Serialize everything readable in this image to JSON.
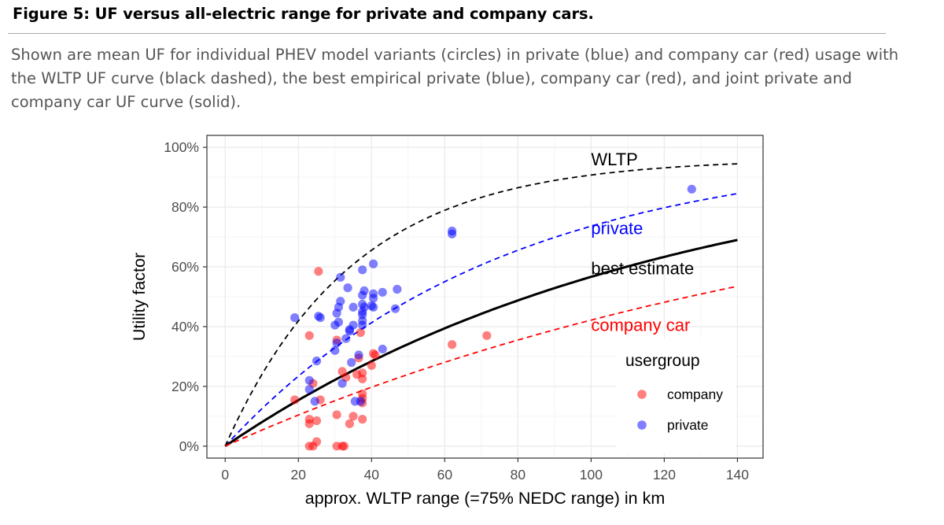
{
  "figure": {
    "title": "Figure 5: UF versus all-electric range for private and company cars.",
    "caption": "Shown are mean UF for individual PHEV model variants (circles) in private (blue) and company car (red) usage with the WLTP UF curve (black dashed), the best empirical private (blue), company car (red), and joint private and company car UF curve (solid)."
  },
  "chart_data": {
    "type": "scatter",
    "xlabel": "approx. WLTP range (=75% NEDC range) in km",
    "ylabel": "Utility factor",
    "xlim": [
      -5,
      147
    ],
    "ylim": [
      -4,
      104
    ],
    "x_ticks": [
      0,
      20,
      40,
      60,
      80,
      100,
      120,
      140
    ],
    "x_tick_labels": [
      "0",
      "20",
      "40",
      "60",
      "80",
      "100",
      "120",
      "140"
    ],
    "y_ticks": [
      0,
      20,
      40,
      60,
      80,
      100
    ],
    "y_tick_labels": [
      "0%",
      "20%",
      "40%",
      "60%",
      "80%",
      "100%"
    ],
    "grid": true,
    "legend": {
      "title": "usergroup",
      "placement": "bottom-right",
      "entries": [
        {
          "label": "company",
          "color": "#ff0000"
        },
        {
          "label": "private",
          "color": "#0000ff"
        }
      ]
    },
    "curves": [
      {
        "label": "WLTP",
        "color": "#000000",
        "style": "dashed",
        "scale_km": 35,
        "points": [
          [
            0,
            0
          ],
          [
            5,
            13
          ],
          [
            10,
            25
          ],
          [
            20,
            43
          ],
          [
            30,
            58
          ],
          [
            40,
            68
          ],
          [
            50,
            75
          ],
          [
            60,
            80
          ],
          [
            70,
            84
          ],
          [
            80,
            87
          ],
          [
            90,
            89
          ],
          [
            100,
            91
          ],
          [
            110,
            92
          ],
          [
            120,
            93
          ],
          [
            130,
            94
          ],
          [
            140,
            94.5
          ]
        ]
      },
      {
        "label": "private",
        "color": "#0000ff",
        "style": "dashed",
        "scale_km": 75,
        "points": [
          [
            0,
            0
          ],
          [
            10,
            10
          ],
          [
            20,
            19
          ],
          [
            30,
            31
          ],
          [
            40,
            42
          ],
          [
            50,
            52
          ],
          [
            60,
            60
          ],
          [
            70,
            66
          ],
          [
            80,
            71
          ],
          [
            90,
            75
          ],
          [
            100,
            78
          ],
          [
            110,
            80
          ],
          [
            120,
            82
          ],
          [
            130,
            83.5
          ],
          [
            140,
            84.5
          ]
        ]
      },
      {
        "label": "best estimate",
        "color": "#000000",
        "style": "solid",
        "scale_km": 120,
        "points": [
          [
            0,
            0
          ],
          [
            10,
            10
          ],
          [
            20,
            19
          ],
          [
            30,
            27
          ],
          [
            40,
            34
          ],
          [
            50,
            40
          ],
          [
            60,
            45
          ],
          [
            70,
            50
          ],
          [
            80,
            54
          ],
          [
            90,
            57
          ],
          [
            100,
            60
          ],
          [
            110,
            63
          ],
          [
            120,
            65.5
          ],
          [
            130,
            67.5
          ],
          [
            140,
            69
          ]
        ]
      },
      {
        "label": "company car",
        "color": "#ff0000",
        "style": "dashed",
        "scale_km": 180,
        "points": [
          [
            0,
            0
          ],
          [
            10,
            7
          ],
          [
            20,
            13
          ],
          [
            30,
            18
          ],
          [
            40,
            23
          ],
          [
            50,
            27
          ],
          [
            60,
            31
          ],
          [
            70,
            35
          ],
          [
            80,
            38
          ],
          [
            90,
            41
          ],
          [
            100,
            44
          ],
          [
            110,
            46
          ],
          [
            120,
            48.5
          ],
          [
            130,
            51
          ],
          [
            140,
            53.5
          ]
        ]
      }
    ],
    "series": [
      {
        "name": "company",
        "color": "#ff0000",
        "points": [
          [
            19,
            15.5
          ],
          [
            23,
            37
          ],
          [
            23,
            9
          ],
          [
            23,
            7.5
          ],
          [
            23,
            0
          ],
          [
            24,
            21
          ],
          [
            24,
            0
          ],
          [
            25,
            8.5
          ],
          [
            25,
            1.5
          ],
          [
            25.5,
            58.5
          ],
          [
            26,
            15.5
          ],
          [
            30.5,
            35.5
          ],
          [
            30.5,
            10.5
          ],
          [
            30.5,
            0
          ],
          [
            32,
            25
          ],
          [
            32,
            0
          ],
          [
            32.5,
            0
          ],
          [
            33,
            23
          ],
          [
            34,
            7.5
          ],
          [
            35,
            10
          ],
          [
            36,
            24
          ],
          [
            36.5,
            29.5
          ],
          [
            37,
            38
          ],
          [
            37.5,
            24.5
          ],
          [
            37.5,
            22.5
          ],
          [
            37.5,
            17.5
          ],
          [
            37.5,
            16
          ],
          [
            37.5,
            14.5
          ],
          [
            37.5,
            9
          ],
          [
            40,
            27
          ],
          [
            40.5,
            31
          ],
          [
            41,
            30.5
          ],
          [
            62,
            34
          ],
          [
            71.5,
            37
          ]
        ]
      },
      {
        "name": "private",
        "color": "#0000ff",
        "points": [
          [
            19,
            43
          ],
          [
            23,
            22
          ],
          [
            23,
            19
          ],
          [
            24.5,
            15
          ],
          [
            25,
            28.5
          ],
          [
            25.5,
            43.5
          ],
          [
            26,
            43
          ],
          [
            30,
            32
          ],
          [
            30,
            40.5
          ],
          [
            30.5,
            34.5
          ],
          [
            30.5,
            44.5
          ],
          [
            31,
            41.5
          ],
          [
            31,
            46.5
          ],
          [
            31.5,
            48.5
          ],
          [
            31.5,
            56.5
          ],
          [
            32,
            21
          ],
          [
            33,
            36
          ],
          [
            33.5,
            53
          ],
          [
            34,
            39
          ],
          [
            34,
            38.5
          ],
          [
            34.5,
            28
          ],
          [
            35,
            46.5
          ],
          [
            35,
            40.5
          ],
          [
            35.5,
            15
          ],
          [
            36.5,
            30.5
          ],
          [
            37,
            15
          ],
          [
            37.5,
            59
          ],
          [
            37.5,
            50.5
          ],
          [
            37.5,
            47.5
          ],
          [
            37.5,
            45
          ],
          [
            37.5,
            44
          ],
          [
            37.5,
            42
          ],
          [
            37.5,
            40.5
          ],
          [
            38,
            52
          ],
          [
            38,
            46.5
          ],
          [
            40,
            47
          ],
          [
            40.5,
            61
          ],
          [
            40.5,
            51
          ],
          [
            40.5,
            49.5
          ],
          [
            40.5,
            46.5
          ],
          [
            43,
            51.5
          ],
          [
            43,
            32.5
          ],
          [
            46.5,
            46
          ],
          [
            47,
            52.5
          ],
          [
            62,
            72
          ],
          [
            62,
            71
          ],
          [
            127.5,
            86
          ]
        ]
      }
    ],
    "annotations": [
      {
        "text": "WLTP",
        "color": "#000000",
        "x": 100,
        "y": 94
      },
      {
        "text": "private",
        "color": "#0000ff",
        "x": 100,
        "y": 71
      },
      {
        "text": "best estimate",
        "color": "#000000",
        "x": 100,
        "y": 57.5
      },
      {
        "text": "company car",
        "color": "#ff0000",
        "x": 100,
        "y": 38.5
      }
    ],
    "colors": {
      "panel_border": "#333333",
      "grid_major": "#ebebeb",
      "grid_minor": "#f4f4f4",
      "tick_text": "#4d4d4d"
    }
  }
}
